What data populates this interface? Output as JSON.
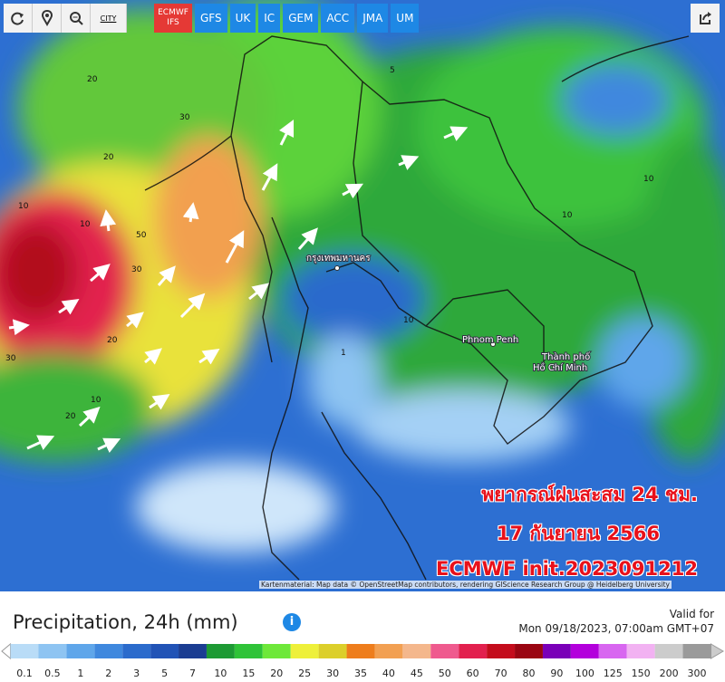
{
  "toolbar": {
    "city": "CITY",
    "models": [
      "ECMWF IFS",
      "GFS",
      "UK",
      "IC",
      "GEM",
      "ACC",
      "JMA",
      "UM"
    ]
  },
  "map": {
    "places": [
      "กรุงเทพมหานคร",
      "Phnom Penh",
      "Thành phố",
      "Hồ Chí Minh"
    ],
    "contours": [
      "20",
      "20",
      "30",
      "50",
      "30",
      "10",
      "20",
      "10",
      "10",
      "1",
      "10",
      "20",
      "30",
      "10",
      "5",
      "10"
    ]
  },
  "overlay": [
    "พยากรณ์ฝนสะสม 24 ชม.",
    "17 กันยายน 2566",
    "ECMWF init.2023091212"
  ],
  "attribution": "Kartenmaterial: Map data © OpenStreetMap contributors, rendering GIScience Research Group @ Heidelberg University",
  "footer": {
    "title": "Precipitation, 24h (mm)",
    "valid_label": "Valid for",
    "valid_time": "Mon 09/18/2023, 07:00am GMT+07",
    "legend": [
      {
        "label": "0.1",
        "color": "#b9dcf7"
      },
      {
        "label": "0.5",
        "color": "#8ec4f2"
      },
      {
        "label": "1",
        "color": "#5fa6ea"
      },
      {
        "label": "2",
        "color": "#3f88de"
      },
      {
        "label": "3",
        "color": "#2b6bcc"
      },
      {
        "label": "5",
        "color": "#2153b6"
      },
      {
        "label": "7",
        "color": "#1b3d92"
      },
      {
        "label": "10",
        "color": "#1d9a34"
      },
      {
        "label": "15",
        "color": "#2fc338"
      },
      {
        "label": "20",
        "color": "#6ee83a"
      },
      {
        "label": "25",
        "color": "#eef03a"
      },
      {
        "label": "30",
        "color": "#dccf2a"
      },
      {
        "label": "35",
        "color": "#ee7d1c"
      },
      {
        "label": "40",
        "color": "#f2a052"
      },
      {
        "label": "45",
        "color": "#f4b78c"
      },
      {
        "label": "50",
        "color": "#ef5a8e"
      },
      {
        "label": "60",
        "color": "#e2204e"
      },
      {
        "label": "70",
        "color": "#c40c1c"
      },
      {
        "label": "80",
        "color": "#9a0512"
      },
      {
        "label": "90",
        "color": "#7a00b8"
      },
      {
        "label": "100",
        "color": "#b300dc"
      },
      {
        "label": "125",
        "color": "#d866f0"
      },
      {
        "label": "150",
        "color": "#f2b2f2"
      },
      {
        "label": "200",
        "color": "#cccccc"
      },
      {
        "label": "300",
        "color": "#9a9a9a"
      }
    ]
  }
}
